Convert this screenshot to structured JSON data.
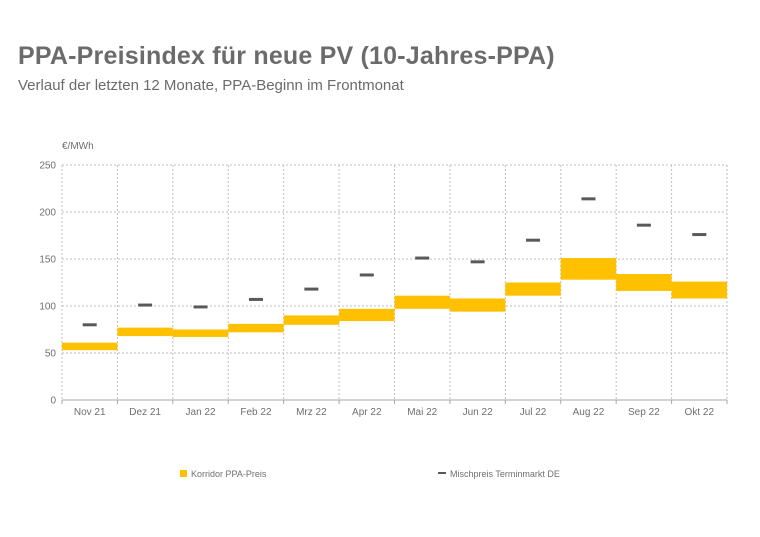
{
  "header": {
    "title": "PPA-Preisindex für neue PV (10-Jahres-PPA)",
    "subtitle": "Verlauf der letzten 12 Monate, PPA-Beginn im Frontmonat"
  },
  "chart_data": {
    "type": "bar",
    "ylabel": "€/MWh",
    "ylim": [
      0,
      250
    ],
    "yticks": [
      0,
      50,
      100,
      150,
      200,
      250
    ],
    "grid": true,
    "legend_placement": "bottom",
    "categories": [
      "Nov 21",
      "Dez 21",
      "Jan 22",
      "Feb 22",
      "Mrz 22",
      "Apr 22",
      "Mai 22",
      "Jun 22",
      "Jul 22",
      "Aug 22",
      "Sep 22",
      "Okt 22"
    ],
    "series": [
      {
        "name": "Korridor PPA-Preis",
        "type": "floating-bar",
        "color": "#ffc000",
        "low": [
          53,
          68,
          67,
          72,
          80,
          84,
          97,
          94,
          111,
          128,
          116,
          108
        ],
        "high": [
          61,
          77,
          75,
          81,
          90,
          97,
          111,
          108,
          125,
          151,
          134,
          126
        ]
      },
      {
        "name": "Mischpreis Terminmarkt DE",
        "type": "marker",
        "color": "#595959",
        "values": [
          80,
          101,
          99,
          107,
          118,
          133,
          151,
          147,
          170,
          214,
          186,
          176
        ]
      }
    ]
  }
}
